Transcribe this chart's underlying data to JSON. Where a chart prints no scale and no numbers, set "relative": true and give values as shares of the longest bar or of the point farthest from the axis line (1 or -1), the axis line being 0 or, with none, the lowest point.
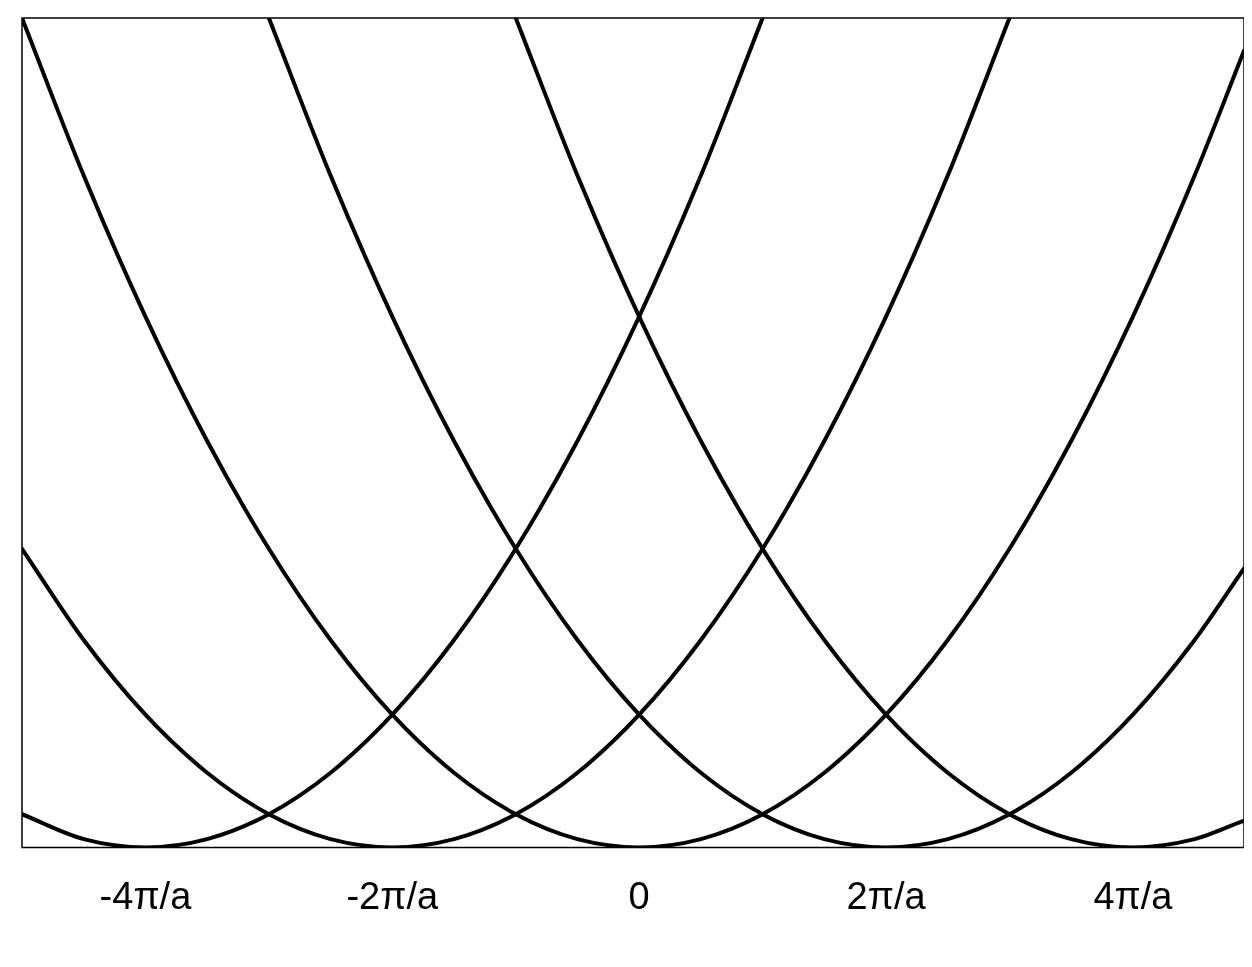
{
  "chart_data": {
    "type": "line",
    "relative": true,
    "xlim": [
      -5,
      4.9
    ],
    "xticks": [
      {
        "value": -4,
        "label": "-4π/a"
      },
      {
        "value": -2,
        "label": "-2π/a"
      },
      0,
      {
        "value": 2,
        "label": "2π/a"
      },
      {
        "value": 4,
        "label": "4π/a"
      }
    ],
    "grid": false,
    "legend": false,
    "marker": "none",
    "line_style": "solid",
    "series": [
      {
        "color": "#000000",
        "x": [
          -5,
          -4.5,
          -4,
          -3.5,
          -3,
          -2.5,
          -2,
          -1.5,
          -1,
          -0.5,
          0,
          0.5,
          1
        ],
        "values": [
          0.04,
          0.01,
          0,
          0.01,
          0.04,
          0.09,
          0.16,
          0.25,
          0.36,
          0.49,
          0.64,
          0.81,
          1
        ]
      },
      {
        "color": "#000000",
        "x": [
          -5,
          -4.5,
          -4,
          -3.5,
          -3,
          -2.5,
          -2,
          -1.5,
          -1,
          -0.5,
          0,
          0.5,
          1,
          1.5,
          2,
          2.5,
          3
        ],
        "values": [
          0.36,
          0.25,
          0.16,
          0.09,
          0.04,
          0.01,
          0,
          0.01,
          0.04,
          0.09,
          0.16,
          0.25,
          0.36,
          0.49,
          0.64,
          0.81,
          1
        ]
      },
      {
        "color": "#000000",
        "x": [
          -5,
          -4.5,
          -4,
          -3.5,
          -3,
          -2.5,
          -2,
          -1.5,
          -1,
          -0.5,
          0,
          0.5,
          1,
          1.5,
          2,
          2.5,
          3,
          3.5,
          4,
          4.5,
          4.9
        ],
        "values": [
          1,
          0.81,
          0.64,
          0.49,
          0.36,
          0.25,
          0.16,
          0.09,
          0.04,
          0.01,
          0,
          0.01,
          0.04,
          0.09,
          0.16,
          0.25,
          0.36,
          0.49,
          0.64,
          0.81,
          0.9604
        ]
      },
      {
        "color": "#000000",
        "x": [
          -3,
          -2.5,
          -2,
          -1.5,
          -1,
          -0.5,
          0,
          0.5,
          1,
          1.5,
          2,
          2.5,
          3,
          3.5,
          4,
          4.5,
          4.9
        ],
        "values": [
          1,
          0.81,
          0.64,
          0.49,
          0.36,
          0.25,
          0.16,
          0.09,
          0.04,
          0.01,
          0,
          0.01,
          0.04,
          0.09,
          0.16,
          0.25,
          0.3364
        ]
      },
      {
        "color": "#000000",
        "x": [
          -1,
          -0.5,
          0,
          0.5,
          1,
          1.5,
          2,
          2.5,
          3,
          3.5,
          4,
          4.5,
          4.9
        ],
        "values": [
          1,
          0.81,
          0.64,
          0.49,
          0.36,
          0.25,
          0.16,
          0.09,
          0.04,
          0.01,
          0,
          0.01,
          0.0324
        ]
      }
    ]
  }
}
